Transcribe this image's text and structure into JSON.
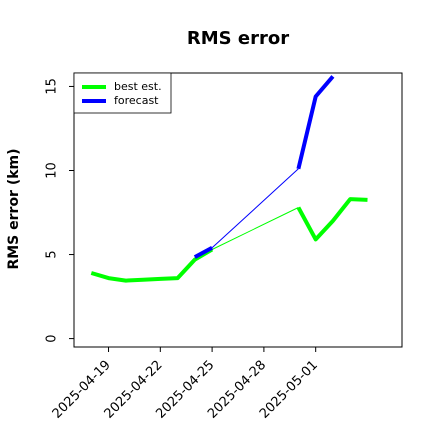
{
  "chart_data": {
    "type": "line",
    "title": "RMS error",
    "xlabel": "",
    "ylabel": "RMS error (km)",
    "x_ticks": [
      "2025-04-19",
      "2025-04-22",
      "2025-04-25",
      "2025-04-28",
      "2025-05-01"
    ],
    "y_ticks": [
      0,
      5,
      10,
      15
    ],
    "xlim": [
      "2025-04-17",
      "2025-05-06"
    ],
    "ylim": [
      -0.5,
      15.8
    ],
    "grid": false,
    "legend_position": "top-left",
    "series": [
      {
        "name": "best est.",
        "color": "#00ff00",
        "style": "thick",
        "points": [
          [
            "2025-04-18",
            3.9
          ],
          [
            "2025-04-19",
            3.6
          ],
          [
            "2025-04-20",
            3.45
          ],
          [
            "2025-04-21",
            3.5
          ],
          [
            "2025-04-22",
            3.55
          ],
          [
            "2025-04-23",
            3.6
          ],
          [
            "2025-04-24",
            4.7
          ],
          [
            "2025-04-25",
            5.3
          ]
        ]
      },
      {
        "name": "best est.",
        "color": "#00ff00",
        "style": "thin",
        "points": [
          [
            "2025-04-25",
            5.3
          ],
          [
            "2025-04-30",
            7.8
          ]
        ]
      },
      {
        "name": "best est.",
        "color": "#00ff00",
        "style": "thick",
        "points": [
          [
            "2025-04-30",
            7.8
          ],
          [
            "2025-05-01",
            5.9
          ],
          [
            "2025-05-02",
            7.0
          ],
          [
            "2025-05-03",
            8.3
          ],
          [
            "2025-05-04",
            8.25
          ]
        ]
      },
      {
        "name": "forecast",
        "color": "#0000ff",
        "style": "thick",
        "points": [
          [
            "2025-04-24",
            4.85
          ],
          [
            "2025-04-25",
            5.4
          ]
        ]
      },
      {
        "name": "forecast",
        "color": "#0000ff",
        "style": "thin",
        "points": [
          [
            "2025-04-25",
            5.4
          ],
          [
            "2025-04-30",
            10.1
          ]
        ]
      },
      {
        "name": "forecast",
        "color": "#0000ff",
        "style": "thick",
        "points": [
          [
            "2025-04-30",
            10.1
          ],
          [
            "2025-05-01",
            14.4
          ],
          [
            "2025-05-02",
            15.6
          ]
        ]
      }
    ],
    "legend": [
      {
        "label": "best est.",
        "color": "#00ff00"
      },
      {
        "label": "forecast",
        "color": "#0000ff"
      }
    ]
  }
}
